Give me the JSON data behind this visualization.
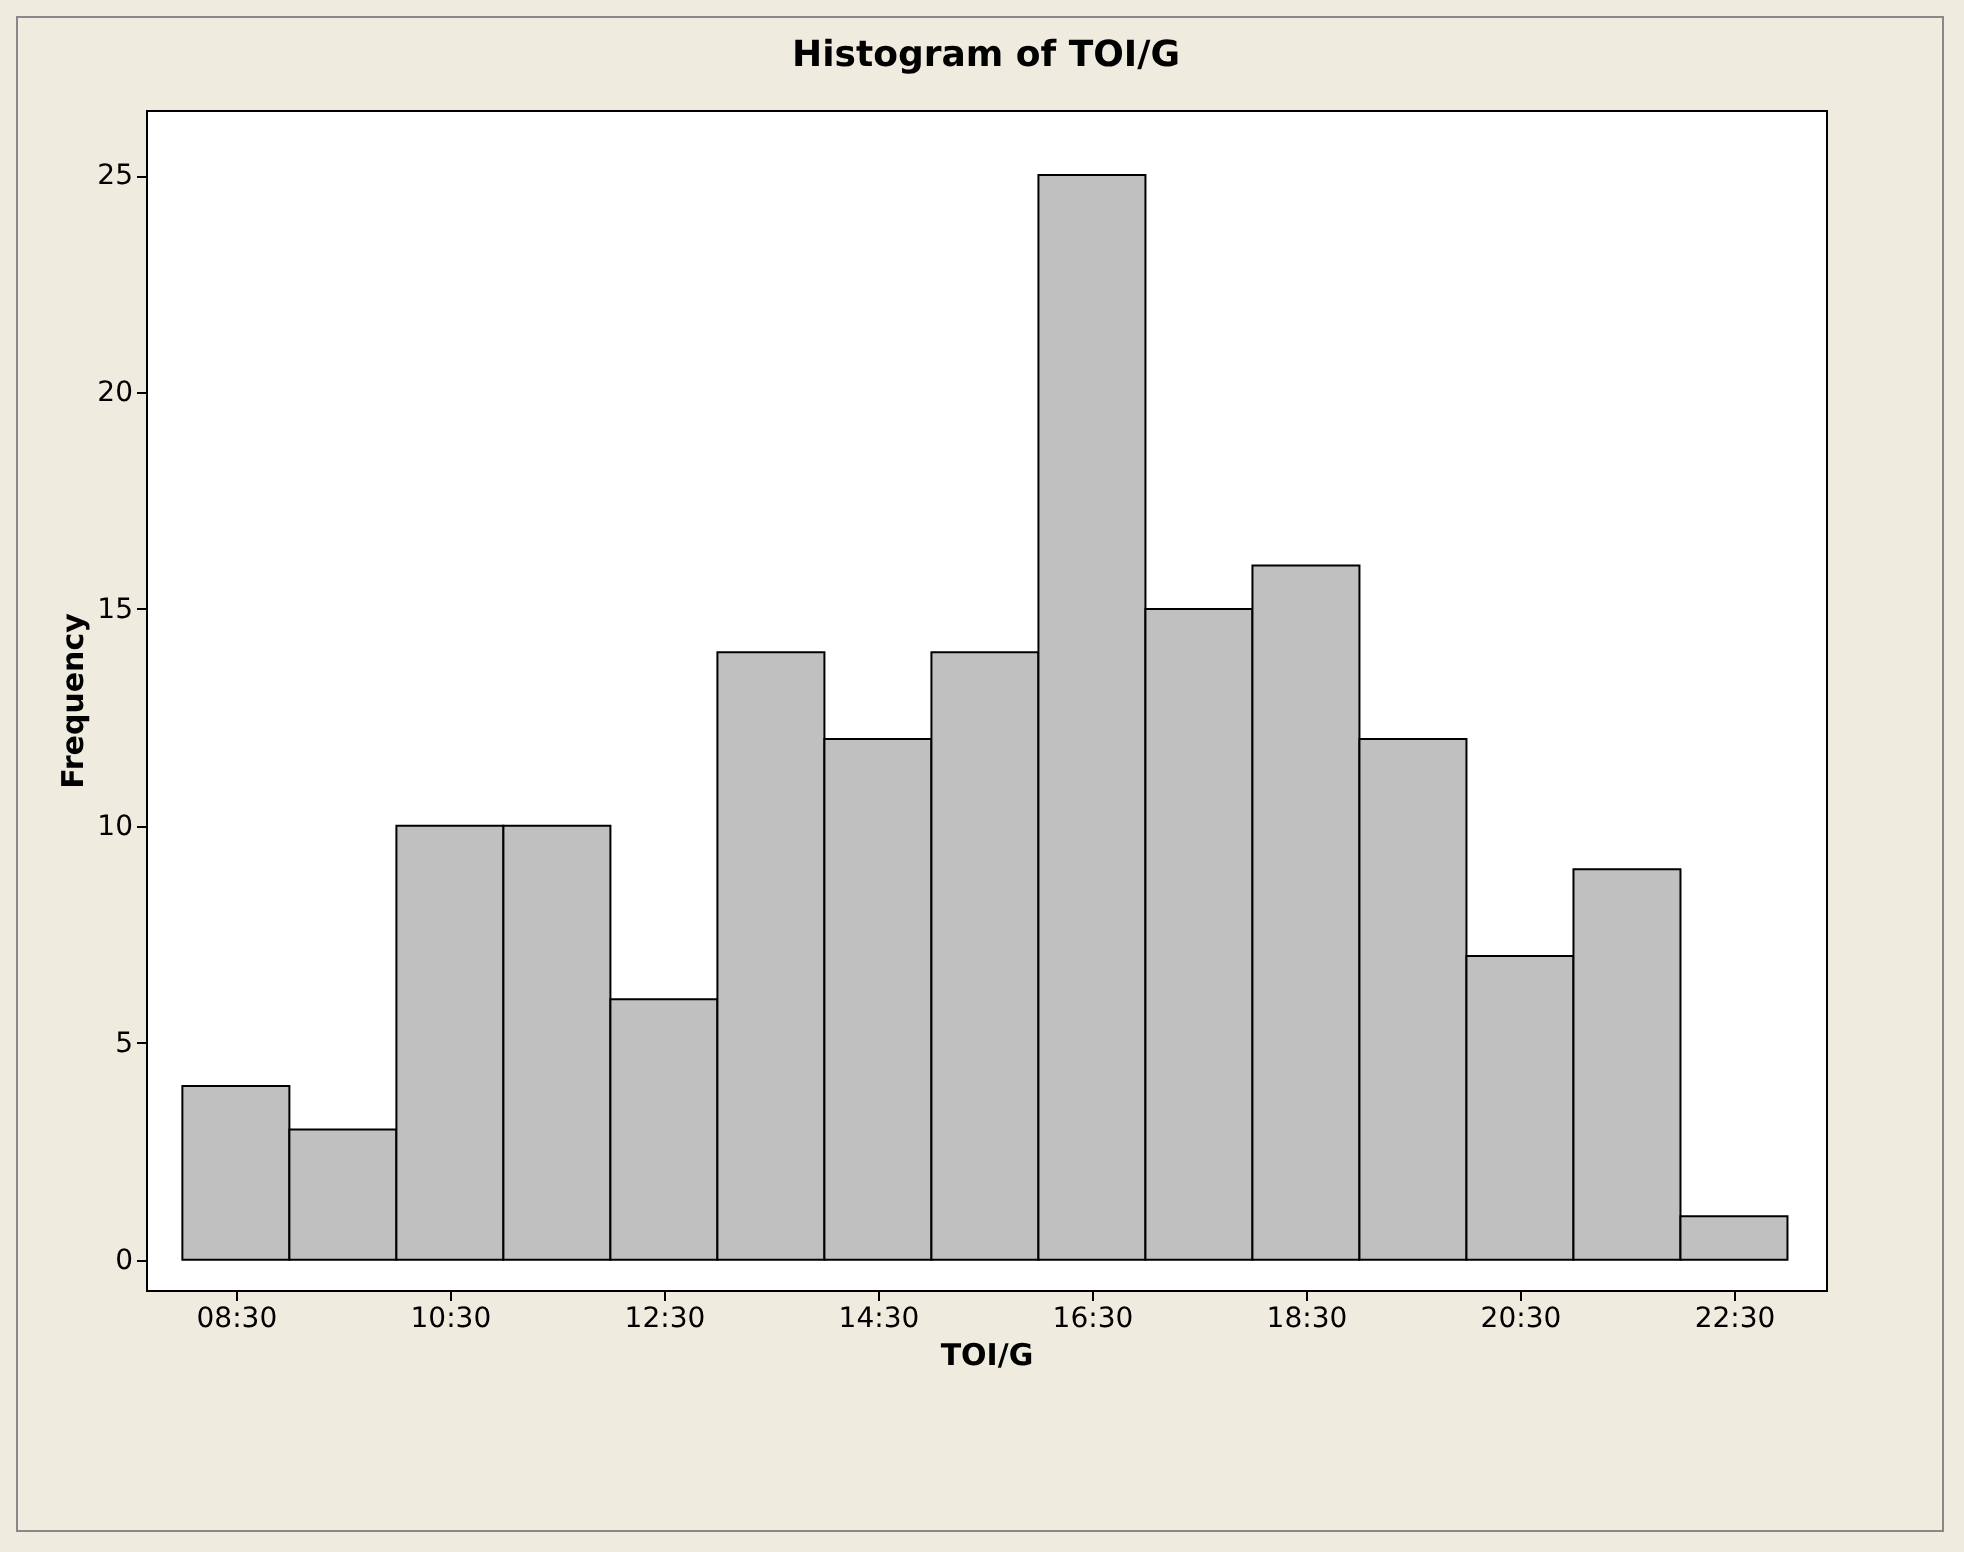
{
  "chart_data": {
    "type": "histogram",
    "title": "Histogram of TOI/G",
    "xlabel": "TOI/G",
    "ylabel": "Frequency",
    "bins": [
      8,
      9,
      10,
      11,
      12,
      13,
      14,
      15,
      16,
      17,
      18,
      19,
      20,
      21,
      22,
      23
    ],
    "values": [
      4,
      3,
      10,
      10,
      6,
      14,
      12,
      14,
      25,
      15,
      16,
      12,
      7,
      9,
      1
    ],
    "color": "#c0c0c0",
    "xlim": [
      7.66,
      23.36
    ],
    "xticks": [
      {
        "value": 8.5,
        "label": "08:30"
      },
      {
        "value": 10.5,
        "label": "10:30"
      },
      {
        "value": 12.5,
        "label": "12:30"
      },
      {
        "value": 14.5,
        "label": "14:30"
      },
      {
        "value": 16.5,
        "label": "16:30"
      },
      {
        "value": 18.5,
        "label": "18:30"
      },
      {
        "value": 20.5,
        "label": "20:30"
      },
      {
        "value": 22.5,
        "label": "22:30"
      }
    ],
    "ylim": [
      -0.7,
      26.5
    ],
    "yticks": [
      0,
      5,
      10,
      15,
      20,
      25
    ],
    "grid": false
  }
}
